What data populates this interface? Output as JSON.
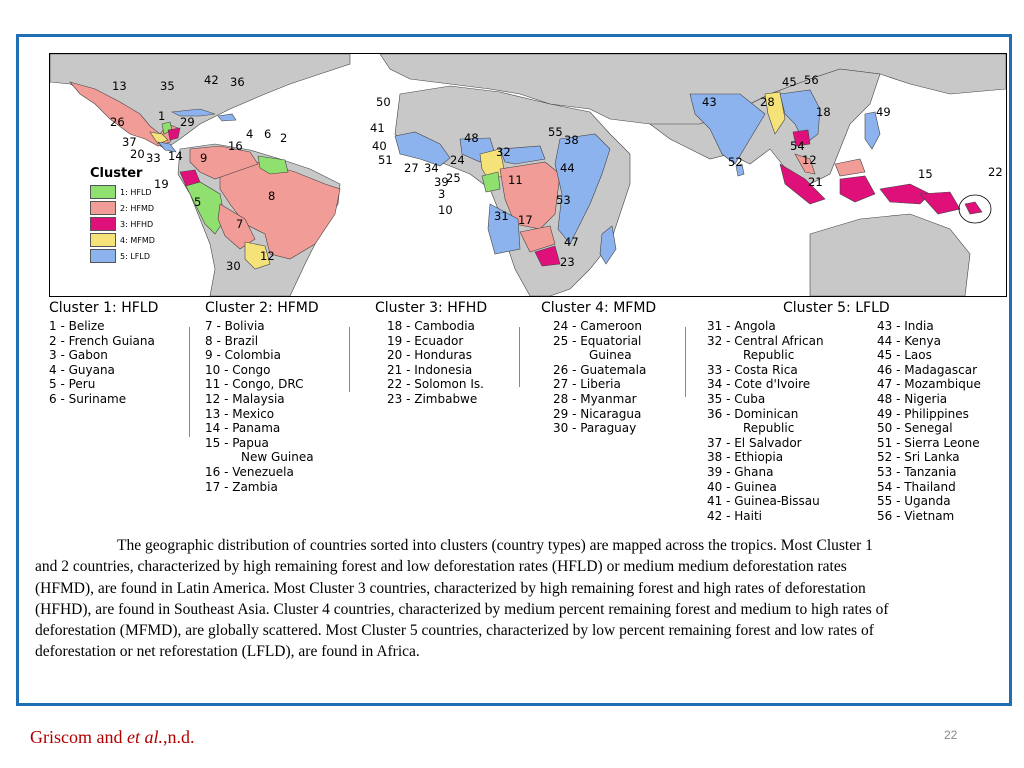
{
  "colors": {
    "frame": "#1f6fb5",
    "ocean": "#ffffff",
    "land_other": "#c8c8c8",
    "border": "#444444",
    "cluster1": "#90e070",
    "cluster2": "#f29c97",
    "cluster3": "#e0107a",
    "cluster4": "#f5e37a",
    "cluster5": "#8db3ef",
    "citation": "#b00000"
  },
  "legend": {
    "title": "Cluster",
    "items": [
      {
        "label": "1: HFLD",
        "color": "#90e070"
      },
      {
        "label": "2: HFMD",
        "color": "#f29c97"
      },
      {
        "label": "3: HFHD",
        "color": "#e0107a"
      },
      {
        "label": "4: MFMD",
        "color": "#f5e37a"
      },
      {
        "label": "5: LFLD",
        "color": "#8db3ef"
      }
    ]
  },
  "map_labels": [
    "13",
    "35",
    "42",
    "36",
    "26",
    "1",
    "29",
    "37",
    "20",
    "33",
    "14",
    "4",
    "6",
    "2",
    "9",
    "16",
    "19",
    "5",
    "8",
    "7",
    "12",
    "30",
    "50",
    "41",
    "40",
    "51",
    "27",
    "34",
    "39",
    "24",
    "25",
    "3",
    "10",
    "48",
    "32",
    "55",
    "38",
    "44",
    "11",
    "53",
    "31",
    "17",
    "47",
    "23",
    "43",
    "45",
    "56",
    "28",
    "18",
    "49",
    "54",
    "52",
    "12",
    "21",
    "15",
    "22"
  ],
  "clusters": [
    {
      "title": "Cluster 1: HFLD",
      "items": [
        "1 - Belize",
        "2 - French Guiana",
        "3 - Gabon",
        "4 - Guyana",
        "5 - Peru",
        "6 - Suriname"
      ]
    },
    {
      "title": "Cluster 2: HFMD",
      "items": [
        "7 - Bolivia",
        "8 - Brazil",
        "9 - Colombia",
        "10 - Congo",
        "11 - Congo, DRC",
        "12 - Malaysia",
        "13 - Mexico",
        "14 - Panama",
        "15 - Papua",
        "New Guinea",
        "16 - Venezuela",
        "17 - Zambia"
      ]
    },
    {
      "title": "Cluster 3: HFHD",
      "items": [
        "18 - Cambodia",
        "19 - Ecuador",
        "20 - Honduras",
        "21 - Indonesia",
        "22 - Solomon Is.",
        "23 - Zimbabwe"
      ]
    },
    {
      "title": "Cluster 4: MFMD",
      "items": [
        "24 - Cameroon",
        "25 - Equatorial",
        "Guinea",
        "26 - Guatemala",
        "27 - Liberia",
        "28 - Myanmar",
        "29 - Nicaragua",
        "30 - Paraguay"
      ]
    },
    {
      "title": "Cluster 5: LFLD",
      "items_a": [
        "31 - Angola",
        "32 - Central African",
        "Republic",
        "33 - Costa Rica",
        "34 - Cote d'Ivoire",
        "35 - Cuba",
        "36 - Dominican",
        "Republic",
        "37 - El Salvador",
        "38 - Ethiopia",
        "39 - Ghana",
        "40 - Guinea",
        "41 - Guinea-Bissau",
        "42 - Haiti"
      ],
      "items_b": [
        "43 - India",
        "44 - Kenya",
        "45 - Laos",
        "46 - Madagascar",
        "47 - Mozambique",
        "48 - Nigeria",
        "49 - Philippines",
        "50 - Senegal",
        "51 - Sierra Leone",
        "52 - Sri Lanka",
        "53 - Tanzania",
        "54 - Thailand",
        "55 - Uganda",
        "56 - Vietnam"
      ]
    }
  ],
  "caption": "The geographic distribution of countries sorted into clusters (country types) are mapped across the tropics.  Most Cluster 1 and 2 countries, characterized by high remaining forest and low deforestation rates (HFLD) or medium medium deforestation rates (HFMD), are found in Latin America.  Most Cluster 3 countries, characterized by high remaining forest and high rates of deforestation (HFHD), are found in Southeast Asia.  Cluster 4 countries, characterized by medium percent remaining forest and medium to high rates of deforestation (MFMD), are globally scattered.  Most Cluster 5 countries, characterized by low percent remaining forest and low rates of deforestation or net reforestation (LFLD), are found in Africa.",
  "citation": {
    "prefix": "Griscom and ",
    "italic": "et al.",
    "suffix": ",n.d."
  },
  "page_number": "22"
}
